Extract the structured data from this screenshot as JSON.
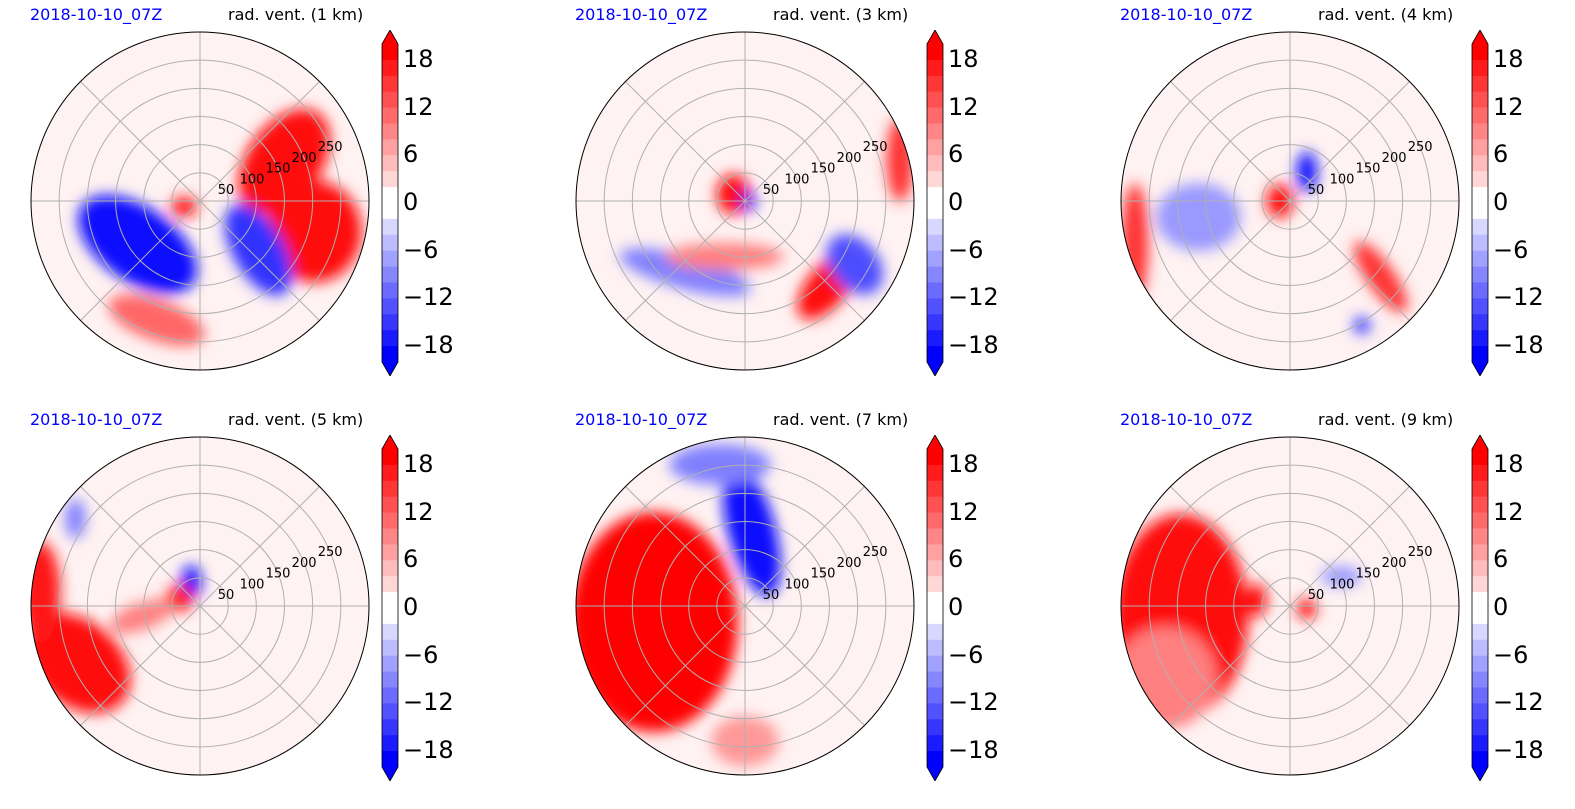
{
  "figure": {
    "colors": {
      "positive": "#ff0000",
      "negative": "#0000ff",
      "grid": "#b0b0b0",
      "date": "#0000ff"
    }
  },
  "chart_data": [
    {
      "type": "heatmap",
      "date": "2018-10-10_07Z",
      "title": "rad. vent. (1 km)",
      "radial_ticks": [
        "50",
        "100",
        "150",
        "200",
        "250"
      ],
      "colorbar": {
        "ticks": [
          "18",
          "12",
          "6",
          "0",
          "−6",
          "−12",
          "−18"
        ],
        "range": [
          -20,
          20
        ],
        "extend": "both",
        "cmap": "bwr"
      },
      "pattern": [
        {
          "sign": "pos",
          "strength": 0.95,
          "theta": 25,
          "r": 0.55,
          "rx": 0.35,
          "ry": 0.22,
          "rot": -55
        },
        {
          "sign": "pos",
          "strength": 0.95,
          "theta": -15,
          "r": 0.7,
          "rx": 0.28,
          "ry": 0.3,
          "rot": 0
        },
        {
          "sign": "neg",
          "strength": 0.95,
          "theta": 215,
          "r": 0.45,
          "rx": 0.4,
          "ry": 0.22,
          "rot": 35
        },
        {
          "sign": "neg",
          "strength": 0.8,
          "theta": -40,
          "r": 0.45,
          "rx": 0.15,
          "ry": 0.3,
          "rot": -30
        },
        {
          "sign": "pos",
          "strength": 0.9,
          "theta": 200,
          "r": 0.1,
          "rx": 0.08,
          "ry": 0.06,
          "rot": 0
        },
        {
          "sign": "pos",
          "strength": 0.6,
          "theta": 250,
          "r": 0.75,
          "rx": 0.3,
          "ry": 0.12,
          "rot": 20
        }
      ]
    },
    {
      "type": "heatmap",
      "date": "2018-10-10_07Z",
      "title": "rad. vent. (3 km)",
      "radial_ticks": [
        "50",
        "100",
        "150",
        "200",
        "250"
      ],
      "colorbar": {
        "ticks": [
          "18",
          "12",
          "6",
          "0",
          "−6",
          "−12",
          "−18"
        ],
        "range": [
          -20,
          20
        ],
        "extend": "both",
        "cmap": "bwr"
      },
      "pattern": [
        {
          "sign": "pos",
          "strength": 0.95,
          "theta": 150,
          "r": 0.08,
          "rx": 0.1,
          "ry": 0.12,
          "rot": 0
        },
        {
          "sign": "neg",
          "strength": 0.95,
          "theta": 0,
          "r": 0.02,
          "rx": 0.04,
          "ry": 0.06,
          "rot": 0
        },
        {
          "sign": "pos",
          "strength": 0.95,
          "theta": -45,
          "r": 0.7,
          "rx": 0.25,
          "ry": 0.12,
          "rot": -50
        },
        {
          "sign": "neg",
          "strength": 0.7,
          "theta": -30,
          "r": 0.75,
          "rx": 0.14,
          "ry": 0.2,
          "rot": -40
        },
        {
          "sign": "neg",
          "strength": 0.5,
          "theta": 230,
          "r": 0.55,
          "rx": 0.4,
          "ry": 0.1,
          "rot": 15
        },
        {
          "sign": "pos",
          "strength": 0.5,
          "theta": 250,
          "r": 0.35,
          "rx": 0.35,
          "ry": 0.08,
          "rot": 0
        },
        {
          "sign": "pos",
          "strength": 0.8,
          "theta": 15,
          "r": 0.95,
          "rx": 0.08,
          "ry": 0.25,
          "rot": 0
        }
      ]
    },
    {
      "type": "heatmap",
      "date": "2018-10-10_07Z",
      "title": "rad. vent. (4 km)",
      "radial_ticks": [
        "50",
        "100",
        "150",
        "200",
        "250"
      ],
      "colorbar": {
        "ticks": [
          "18",
          "12",
          "6",
          "0",
          "−6",
          "−12",
          "−18"
        ],
        "range": [
          -20,
          20
        ],
        "extend": "both",
        "cmap": "bwr"
      },
      "pattern": [
        {
          "sign": "pos",
          "strength": 0.95,
          "theta": 180,
          "r": 0.06,
          "rx": 0.08,
          "ry": 0.1,
          "rot": 0
        },
        {
          "sign": "neg",
          "strength": 0.95,
          "theta": 60,
          "r": 0.2,
          "rx": 0.06,
          "ry": 0.12,
          "rot": 0
        },
        {
          "sign": "pos",
          "strength": 0.8,
          "theta": -40,
          "r": 0.7,
          "rx": 0.08,
          "ry": 0.25,
          "rot": -35
        },
        {
          "sign": "pos",
          "strength": 0.8,
          "theta": 195,
          "r": 0.95,
          "rx": 0.08,
          "ry": 0.35,
          "rot": 0
        },
        {
          "sign": "neg",
          "strength": 0.4,
          "theta": 190,
          "r": 0.55,
          "rx": 0.25,
          "ry": 0.2,
          "rot": 0
        },
        {
          "sign": "neg",
          "strength": 0.8,
          "theta": -60,
          "r": 0.85,
          "rx": 0.05,
          "ry": 0.05,
          "rot": 0
        }
      ]
    },
    {
      "type": "heatmap",
      "date": "2018-10-10_07Z",
      "title": "rad. vent. (5 km)",
      "radial_ticks": [
        "50",
        "100",
        "150",
        "200",
        "250"
      ],
      "colorbar": {
        "ticks": [
          "18",
          "12",
          "6",
          "0",
          "−6",
          "−12",
          "−18"
        ],
        "range": [
          -20,
          20
        ],
        "extend": "both",
        "cmap": "bwr"
      },
      "pattern": [
        {
          "sign": "pos",
          "strength": 0.95,
          "theta": 205,
          "r": 0.8,
          "rx": 0.35,
          "ry": 0.25,
          "rot": 40
        },
        {
          "sign": "pos",
          "strength": 0.9,
          "theta": 175,
          "r": 0.95,
          "rx": 0.12,
          "ry": 0.3,
          "rot": 0
        },
        {
          "sign": "neg",
          "strength": 0.95,
          "theta": 110,
          "r": 0.15,
          "rx": 0.06,
          "ry": 0.1,
          "rot": 0
        },
        {
          "sign": "pos",
          "strength": 0.9,
          "theta": 160,
          "r": 0.13,
          "rx": 0.08,
          "ry": 0.08,
          "rot": 0
        },
        {
          "sign": "pos",
          "strength": 0.5,
          "theta": 190,
          "r": 0.35,
          "rx": 0.2,
          "ry": 0.08,
          "rot": -20
        },
        {
          "sign": "neg",
          "strength": 0.5,
          "theta": 145,
          "r": 0.9,
          "rx": 0.06,
          "ry": 0.12,
          "rot": 0
        }
      ]
    },
    {
      "type": "heatmap",
      "date": "2018-10-10_07Z",
      "title": "rad. vent. (7 km)",
      "radial_ticks": [
        "50",
        "100",
        "150",
        "200",
        "250"
      ],
      "colorbar": {
        "ticks": [
          "18",
          "12",
          "6",
          "0",
          "−6",
          "−12",
          "−18"
        ],
        "range": [
          -20,
          20
        ],
        "extend": "both",
        "cmap": "bwr"
      },
      "pattern": [
        {
          "sign": "pos",
          "strength": 0.98,
          "theta": 190,
          "r": 0.55,
          "rx": 0.5,
          "ry": 0.65,
          "rot": 0
        },
        {
          "sign": "neg",
          "strength": 0.95,
          "theta": 85,
          "r": 0.45,
          "rx": 0.14,
          "ry": 0.4,
          "rot": -15
        },
        {
          "sign": "neg",
          "strength": 0.5,
          "theta": 100,
          "r": 0.85,
          "rx": 0.3,
          "ry": 0.12,
          "rot": 0
        },
        {
          "sign": "pos",
          "strength": 0.4,
          "theta": 270,
          "r": 0.8,
          "rx": 0.2,
          "ry": 0.15,
          "rot": 0
        }
      ]
    },
    {
      "type": "heatmap",
      "date": "2018-10-10_07Z",
      "title": "rad. vent. (9 km)",
      "radial_ticks": [
        "50",
        "100",
        "150",
        "200",
        "250"
      ],
      "colorbar": {
        "ticks": [
          "18",
          "12",
          "6",
          "0",
          "−6",
          "−12",
          "−18"
        ],
        "range": [
          -20,
          20
        ],
        "extend": "both",
        "cmap": "bwr"
      },
      "pattern": [
        {
          "sign": "pos",
          "strength": 0.95,
          "theta": 185,
          "r": 0.65,
          "rx": 0.4,
          "ry": 0.6,
          "rot": 0
        },
        {
          "sign": "pos",
          "strength": 0.5,
          "theta": 210,
          "r": 0.85,
          "rx": 0.3,
          "ry": 0.3,
          "rot": 0
        },
        {
          "sign": "pos",
          "strength": 0.95,
          "theta": 170,
          "r": 0.2,
          "rx": 0.06,
          "ry": 0.1,
          "rot": 0
        },
        {
          "sign": "pos",
          "strength": 0.9,
          "theta": -10,
          "r": 0.1,
          "rx": 0.06,
          "ry": 0.06,
          "rot": 0
        },
        {
          "sign": "neg",
          "strength": 0.4,
          "theta": 30,
          "r": 0.35,
          "rx": 0.12,
          "ry": 0.06,
          "rot": 0
        }
      ]
    }
  ]
}
